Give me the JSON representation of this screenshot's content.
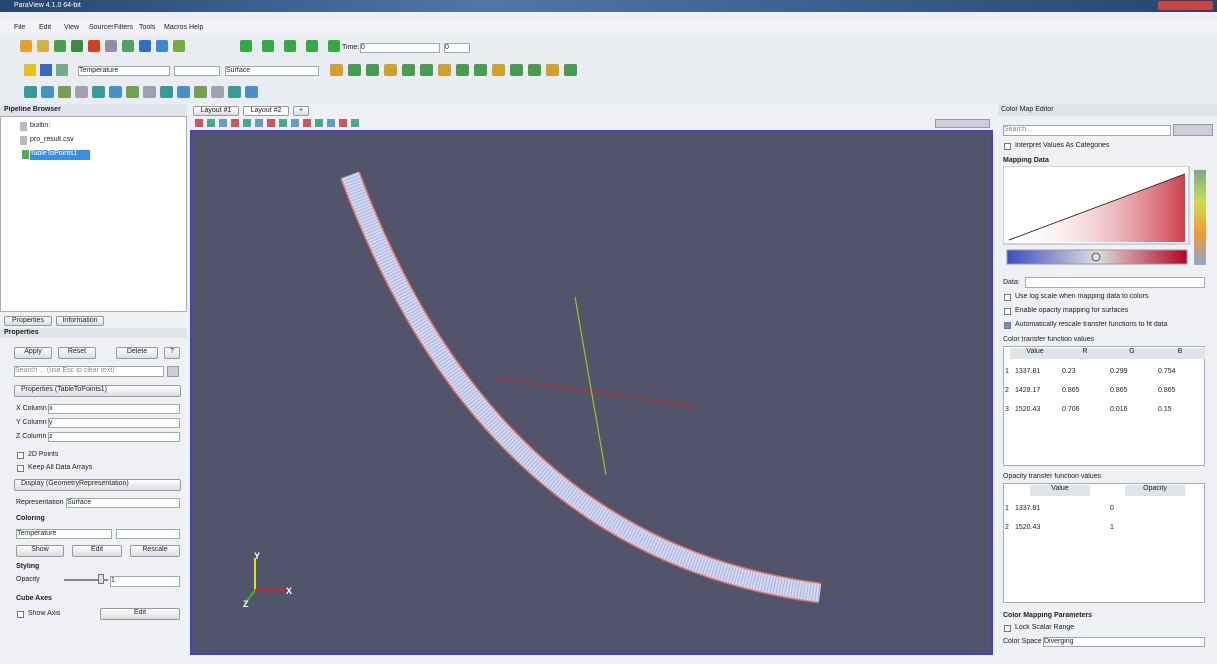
{
  "window": {
    "title": "ParaView 4.1.0 64-bit"
  },
  "menu": [
    "File",
    "Edit",
    "View",
    "Sources",
    "Filters",
    "Tools",
    "Macros",
    "Help"
  ],
  "toolbar": {
    "time_label": "Time:",
    "time_value": "0",
    "time_index": "0",
    "array": "Temperature",
    "representation": "Surface"
  },
  "pipeline": {
    "title": "Pipeline Browser",
    "items": [
      "builtin:",
      "pro_result.csv",
      "TableToPoints1"
    ]
  },
  "properties": {
    "tabs": [
      "Properties",
      "Information"
    ],
    "title": "Properties",
    "buttons": [
      "Apply",
      "Reset",
      "Delete",
      "?"
    ],
    "search": "Search ... (use Esc to clear text)",
    "section": "Properties (TableToPoints1)",
    "columns": [
      {
        "label": "X Column",
        "value": "x"
      },
      {
        "label": "Y Column",
        "value": "y"
      },
      {
        "label": "Z Column",
        "value": "z"
      }
    ],
    "options": [
      "2D Points",
      "Keep All Data Arrays"
    ],
    "display_section": "Display (GeometryRepresentation)",
    "representation_label": "Representation",
    "representation": "Surface",
    "coloring_title": "Coloring",
    "coloring_array": "Temperature",
    "coloring_buttons": [
      "Show",
      "Edit",
      "Rescale"
    ],
    "styling_title": "Styling",
    "opacity_label": "Opacity",
    "opacity_value": "1",
    "cube_axes_title": "Cube Axes",
    "show_axis": "Show Axis",
    "edit": "Edit"
  },
  "layout_tabs": [
    "Layout #1",
    "Layout #2",
    "+"
  ],
  "view": {
    "axes_labels": [
      "X",
      "Y",
      "Z"
    ]
  },
  "color_map_editor": {
    "title": "Color Map Editor",
    "search": "Search...",
    "interpret": "Interpret Values As Categories",
    "mapping_data": "Mapping Data",
    "data_label": "Data:",
    "checkboxes": [
      "Use log scale when mapping data to colors",
      "Enable opacity mapping for surfaces",
      "Automatically rescale transfer functions to fit data"
    ],
    "color_tf_title": "Color transfer function values",
    "color_tf_header": [
      "Value",
      "R",
      "G",
      "B"
    ],
    "color_tf_rows": [
      [
        "1",
        "1337.81",
        "0.23",
        "0.299",
        "0.754"
      ],
      [
        "2",
        "1429.17",
        "0.865",
        "0.865",
        "0.865"
      ],
      [
        "3",
        "1520.43",
        "0.706",
        "0.016",
        "0.15"
      ]
    ],
    "opacity_tf_title": "Opacity transfer function values",
    "opacity_tf_header": [
      "Value",
      "Opacity"
    ],
    "opacity_tf_rows": [
      [
        "1",
        "1337.81",
        "0"
      ],
      [
        "2",
        "1520.43",
        "1"
      ]
    ],
    "parameters_title": "Color Mapping Parameters",
    "lock": "Lock Scalar Range",
    "color_space_label": "Color Space",
    "color_space": "Diverging"
  }
}
